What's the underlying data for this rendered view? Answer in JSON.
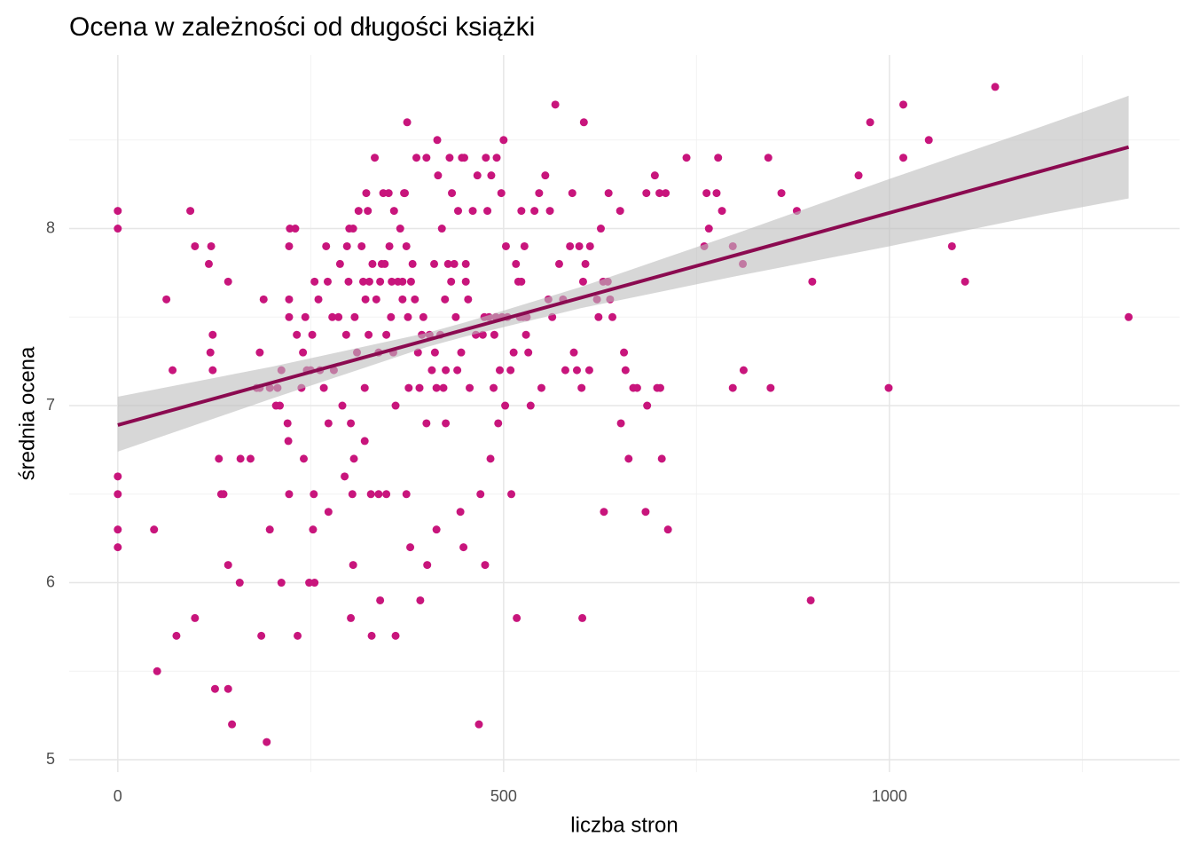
{
  "chart_data": {
    "type": "scatter",
    "title": "Ocena w zależności od długości książki",
    "x_label": "liczba stron",
    "y_label": "średnia ocena",
    "xlim": [
      -63,
      1376
    ],
    "ylim": [
      4.93,
      8.98
    ],
    "xticks": [
      0,
      500,
      1000
    ],
    "yticks": [
      5,
      6,
      7,
      8
    ],
    "x_minor_grid": [
      250,
      750,
      1250
    ],
    "y_minor_grid": [
      5.5,
      6.5,
      7.5,
      8.5
    ],
    "grid": true,
    "series": [
      {
        "color": "#c8157c",
        "x": [
          0,
          0,
          0,
          0,
          0,
          0,
          47,
          51,
          63,
          71,
          76,
          94,
          100,
          100,
          118,
          121,
          120,
          123,
          123,
          126,
          131,
          134,
          137,
          143,
          143,
          143,
          148,
          158,
          159,
          172,
          180,
          184,
          184,
          186,
          189,
          197,
          193,
          197,
          205,
          207,
          212,
          212,
          210,
          220,
          221,
          222,
          223,
          222,
          222,
          222,
          230,
          232,
          233,
          238,
          240,
          241,
          243,
          245,
          248,
          250,
          252,
          253,
          254,
          255,
          255,
          260,
          262,
          267,
          270,
          272,
          273,
          273,
          278,
          280,
          286,
          288,
          291,
          294,
          296,
          297,
          299,
          300,
          302,
          302,
          304,
          305,
          305,
          306,
          307,
          310,
          312,
          316,
          318,
          320,
          320,
          321,
          322,
          324,
          325,
          326,
          328,
          329,
          330,
          333,
          335,
          338,
          338,
          340,
          340,
          342,
          344,
          346,
          348,
          348,
          351,
          352,
          354,
          355,
          357,
          358,
          360,
          360,
          363,
          366,
          369,
          369,
          371,
          372,
          374,
          374,
          375,
          376,
          377,
          379,
          380,
          382,
          385,
          387,
          389,
          391,
          392,
          394,
          396,
          400,
          400,
          401,
          404,
          407,
          410,
          411,
          413,
          413,
          414,
          415,
          418,
          420,
          422,
          424,
          425,
          425,
          428,
          430,
          432,
          433,
          436,
          438,
          440,
          441,
          444,
          445,
          446,
          448,
          449,
          451,
          451,
          454,
          456,
          460,
          464,
          466,
          468,
          470,
          473,
          475,
          476,
          477,
          479,
          481,
          483,
          484,
          487,
          488,
          490,
          491,
          493,
          495,
          497,
          498,
          500,
          502,
          503,
          505,
          509,
          510,
          513,
          516,
          517,
          519,
          521,
          523,
          523,
          525,
          527,
          529,
          530,
          532,
          535,
          540,
          546,
          549,
          554,
          558,
          560,
          563,
          567,
          572,
          577,
          580,
          586,
          589,
          591,
          595,
          598,
          601,
          602,
          603,
          604,
          606,
          611,
          612,
          621,
          623,
          626,
          629,
          630,
          635,
          636,
          638,
          641,
          651,
          652,
          656,
          658,
          662,
          668,
          673,
          685,
          684,
          686,
          696,
          699,
          702,
          703,
          705,
          710,
          713,
          737,
          760,
          763,
          766,
          776,
          778,
          783,
          797,
          797,
          811,
          810,
          843,
          846,
          860,
          880,
          900,
          898,
          960,
          975,
          999,
          1018,
          1018,
          1051,
          1081,
          1098,
          1137,
          1310
        ],
        "values": [
          8.1,
          8.0,
          6.6,
          6.5,
          6.3,
          6.2,
          6.3,
          5.5,
          7.6,
          7.2,
          5.7,
          8.1,
          7.9,
          5.8,
          7.8,
          7.9,
          7.3,
          7.4,
          7.2,
          5.4,
          6.7,
          6.5,
          6.5,
          7.7,
          6.1,
          5.4,
          5.2,
          6.0,
          6.7,
          6.7,
          7.1,
          7.1,
          7.3,
          5.7,
          7.6,
          7.1,
          5.1,
          6.3,
          7.0,
          7.1,
          7.2,
          6.0,
          7.0,
          6.9,
          6.8,
          7.5,
          8.0,
          7.9,
          7.6,
          6.5,
          8.0,
          7.4,
          5.7,
          7.1,
          7.3,
          6.7,
          7.5,
          7.2,
          6.0,
          7.2,
          7.4,
          6.3,
          6.5,
          6.0,
          7.7,
          7.6,
          7.2,
          7.1,
          7.9,
          7.7,
          6.9,
          6.4,
          7.5,
          7.2,
          7.5,
          7.8,
          7.0,
          6.6,
          7.4,
          7.9,
          7.7,
          8.0,
          6.9,
          5.8,
          6.5,
          8.0,
          6.1,
          6.7,
          7.5,
          7.3,
          8.1,
          7.9,
          7.7,
          7.1,
          6.8,
          7.6,
          8.2,
          8.1,
          7.4,
          7.7,
          6.5,
          5.7,
          7.8,
          8.4,
          7.6,
          7.3,
          6.5,
          7.7,
          5.9,
          7.8,
          8.2,
          7.8,
          6.5,
          7.4,
          8.2,
          7.9,
          7.5,
          7.7,
          7.3,
          8.1,
          7.0,
          5.7,
          7.7,
          8.0,
          7.6,
          7.7,
          8.2,
          8.2,
          7.9,
          6.5,
          8.6,
          7.5,
          7.1,
          6.2,
          7.7,
          7.8,
          7.6,
          8.4,
          7.3,
          7.1,
          5.9,
          7.4,
          7.5,
          8.4,
          6.9,
          6.1,
          7.4,
          7.2,
          7.8,
          7.3,
          6.3,
          7.1,
          8.5,
          8.3,
          7.4,
          8.0,
          7.1,
          7.6,
          6.9,
          7.2,
          7.8,
          8.4,
          7.7,
          8.2,
          7.8,
          7.5,
          7.2,
          8.1,
          6.4,
          7.3,
          8.4,
          6.2,
          8.4,
          7.7,
          7.8,
          7.6,
          7.1,
          8.1,
          7.4,
          8.3,
          5.2,
          6.5,
          7.4,
          7.5,
          6.1,
          8.4,
          8.1,
          7.5,
          6.7,
          8.3,
          7.1,
          7.4,
          7.5,
          8.4,
          6.9,
          7.2,
          8.2,
          7.5,
          8.5,
          7.0,
          7.9,
          7.5,
          7.2,
          6.5,
          7.3,
          7.8,
          5.8,
          7.7,
          7.5,
          8.1,
          7.7,
          7.5,
          7.9,
          7.4,
          7.5,
          7.3,
          7.0,
          8.1,
          8.2,
          7.1,
          8.3,
          7.6,
          8.1,
          7.5,
          8.7,
          7.8,
          7.6,
          7.2,
          7.9,
          8.2,
          7.3,
          7.2,
          7.9,
          7.1,
          5.8,
          7.7,
          8.6,
          7.8,
          7.2,
          7.9,
          7.6,
          7.5,
          8.0,
          7.7,
          6.4,
          7.7,
          8.2,
          7.6,
          7.5,
          8.1,
          6.9,
          7.3,
          7.2,
          6.7,
          7.1,
          7.1,
          8.2,
          6.4,
          7.0,
          8.3,
          7.1,
          8.2,
          7.1,
          6.7,
          8.2,
          6.3,
          8.4,
          7.9,
          8.2,
          8.0,
          8.2,
          8.4,
          8.1,
          7.9,
          7.1,
          7.2,
          7.8,
          8.4,
          7.1,
          8.2,
          8.1,
          7.7,
          5.9,
          8.3,
          8.6,
          7.1,
          8.7,
          8.4,
          8.5,
          7.9,
          7.7,
          8.8,
          7.5
        ]
      }
    ],
    "trend": {
      "color": "#8b0a50",
      "x": [
        0,
        1310
      ],
      "values": [
        6.89,
        8.46
      ]
    },
    "band": {
      "color": "#bdbdbd",
      "x": [
        0,
        200,
        400,
        450,
        600,
        800,
        1000,
        1200,
        1310
      ],
      "lower": [
        6.74,
        7.04,
        7.33,
        7.39,
        7.55,
        7.73,
        7.9,
        8.08,
        8.17
      ],
      "upper": [
        7.05,
        7.22,
        7.41,
        7.47,
        7.67,
        7.97,
        8.28,
        8.58,
        8.75
      ]
    }
  }
}
